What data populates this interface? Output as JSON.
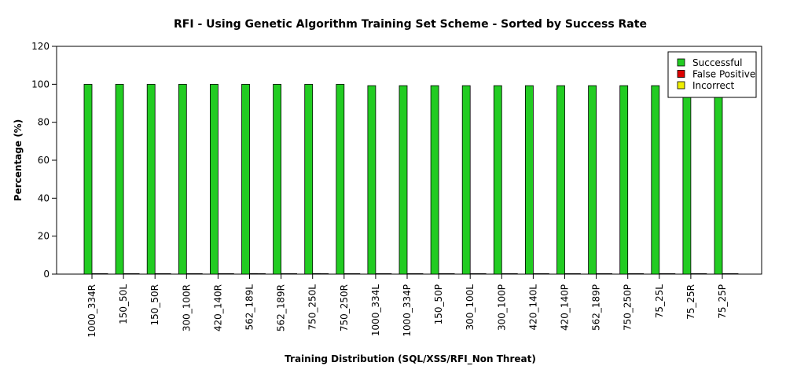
{
  "chart_data": {
    "type": "bar",
    "title": "RFI - Using Genetic Algorithm Training Set Scheme - Sorted by Success Rate",
    "xlabel": "Training Distribution (SQL/XSS/RFI_Non Threat)",
    "ylabel": "Percentage (%)",
    "ylim": [
      0,
      120
    ],
    "yticks": [
      0,
      20,
      40,
      60,
      80,
      100,
      120
    ],
    "grid": false,
    "legend_position": "top-right",
    "categories": [
      "1000_334R",
      "150_50L",
      "150_50R",
      "300_100R",
      "420_140R",
      "562_189L",
      "562_189R",
      "750_250L",
      "750_250R",
      "1000_334L",
      "1000_334P",
      "150_50P",
      "300_100L",
      "300_100P",
      "420_140L",
      "420_140P",
      "562_189P",
      "750_250P",
      "75_25L",
      "75_25R",
      "75_25P"
    ],
    "series": [
      {
        "name": "Successful",
        "color": "#22cc22",
        "values": [
          100,
          100,
          100,
          100,
          100,
          100,
          100,
          100,
          100,
          99.3,
          99.3,
          99.3,
          99.3,
          99.3,
          99.3,
          99.3,
          99.3,
          99.3,
          99.3,
          99.3,
          99.3
        ]
      },
      {
        "name": "False Positive",
        "color": "#dd0000",
        "values": [
          0,
          0,
          0,
          0,
          0,
          0.3,
          0,
          0.3,
          0,
          0.1,
          0,
          0,
          0.1,
          0,
          0.1,
          0,
          0,
          0,
          0.1,
          0.1,
          0
        ]
      },
      {
        "name": "Incorrect",
        "color": "#eeee00",
        "values": [
          0,
          0,
          0,
          0,
          0,
          0,
          0,
          0,
          0,
          0,
          0,
          0,
          0,
          0,
          0,
          0,
          0,
          0,
          0,
          0,
          0
        ]
      }
    ]
  }
}
